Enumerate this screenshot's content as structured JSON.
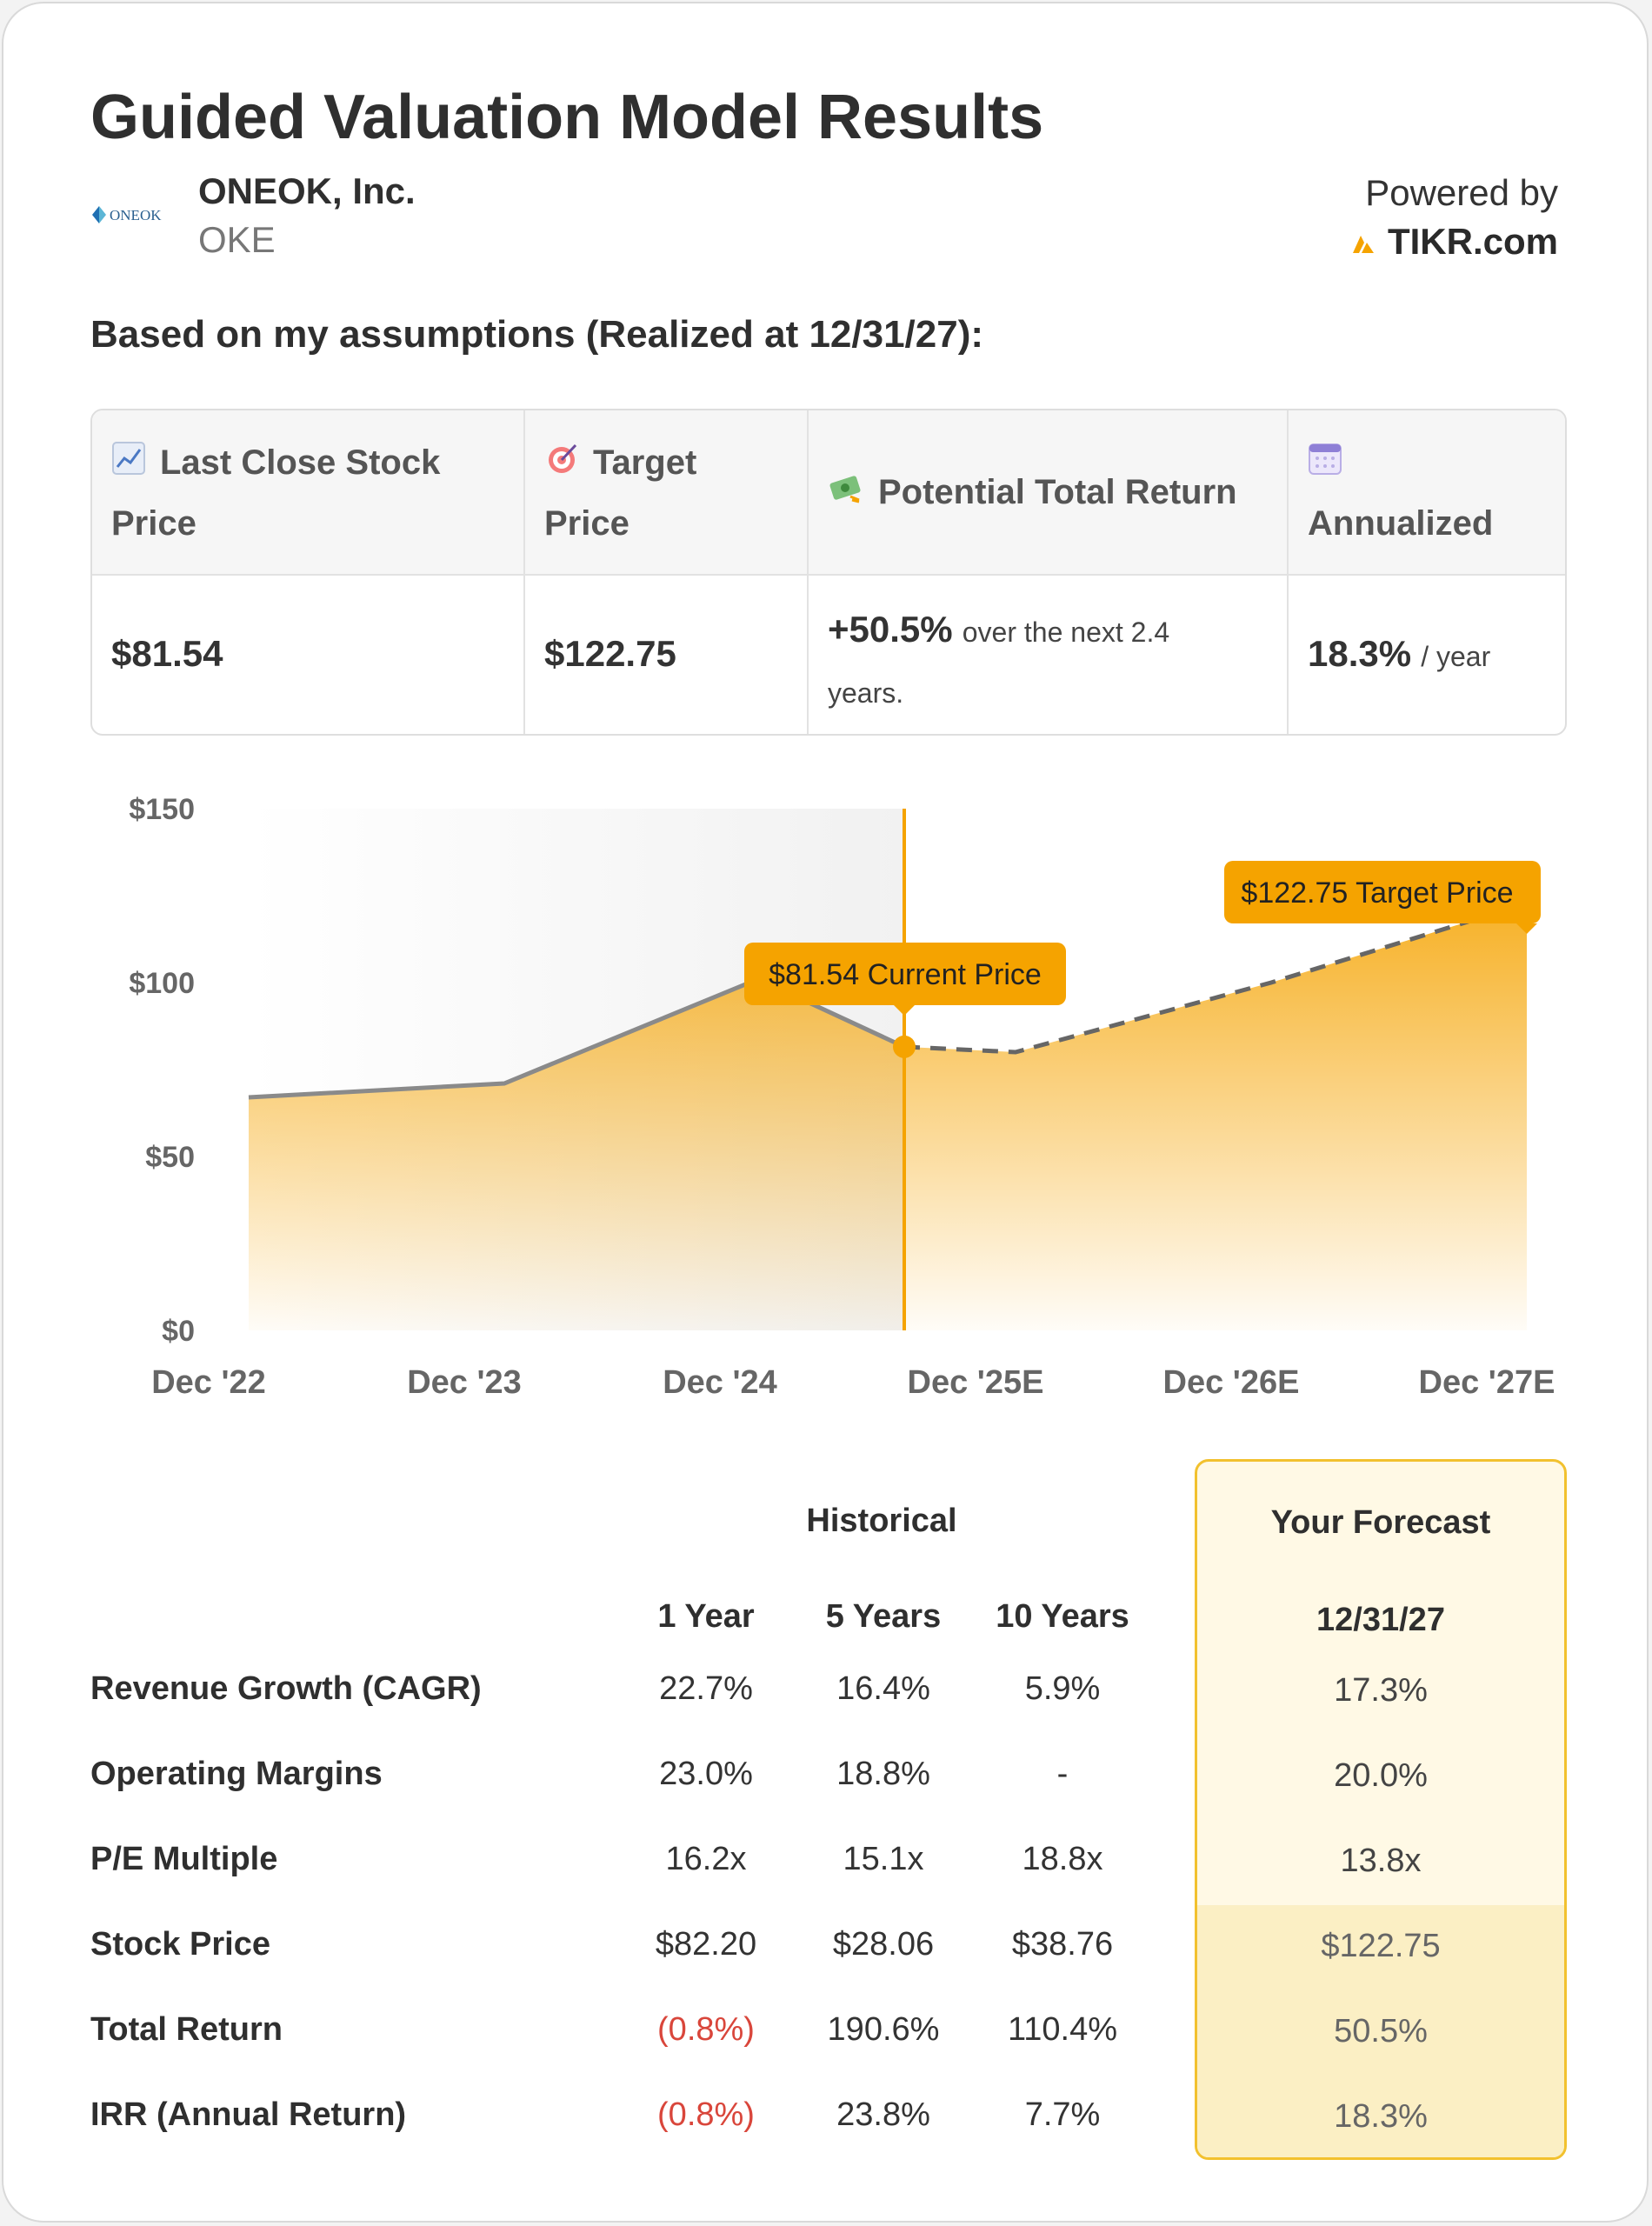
{
  "title": "Guided Valuation Model Results",
  "company": {
    "logo_text": "ONEOK",
    "name": "ONEOK, Inc.",
    "ticker": "OKE"
  },
  "powered_by": {
    "label": "Powered by",
    "brand": "TIKR.com"
  },
  "subtitle": "Based on my assumptions (Realized at 12/31/27):",
  "summary": {
    "headers": [
      {
        "icon": "chart-up-icon",
        "line1": "Last Close Stock",
        "line2": "Price"
      },
      {
        "icon": "target-icon",
        "line1": "Target",
        "line2": "Price"
      },
      {
        "icon": "money-icon",
        "line1": "Potential Total Return",
        "line2": ""
      },
      {
        "icon": "calendar-icon",
        "line1": "",
        "line2": "Annualized"
      }
    ],
    "last_close": "$81.54",
    "target": "$122.75",
    "total_return_value": "+50.5%",
    "total_return_text_1": "over the next 2.4",
    "total_return_text_2": "years.",
    "annualized_value": "18.3%",
    "annualized_unit": "/ year"
  },
  "chart_data": {
    "type": "area",
    "x": [
      "Dec '22",
      "Dec '23",
      "Dec '24",
      "Current",
      "Dec '25E",
      "Dec '26E",
      "Dec '27E"
    ],
    "x_tick_labels": [
      "Dec '22",
      "Dec '23",
      "Dec '24",
      "Dec '25E",
      "Dec '26E",
      "Dec '27E"
    ],
    "y_ticks": [
      "$0",
      "$50",
      "$100",
      "$150"
    ],
    "ylim": [
      0,
      150
    ],
    "historical": [
      67,
      71,
      101,
      81.54
    ],
    "forecast": [
      81.54,
      80,
      100,
      122.75
    ],
    "annotations": {
      "current": "$81.54 Current Price",
      "target": "$122.75 Target Price"
    },
    "colors": {
      "accent": "#f5a300",
      "line": "#8a8a8a",
      "shade": "#f2f2f2"
    }
  },
  "metrics": {
    "historical_label": "Historical",
    "forecast_label": "Your Forecast",
    "columns": [
      "1 Year",
      "5 Years",
      "10 Years"
    ],
    "forecast_date": "12/31/27",
    "rows": [
      {
        "label": "Revenue Growth (CAGR)",
        "y1": "22.7%",
        "y5": "16.4%",
        "y10": "5.9%",
        "forecast": "17.3%"
      },
      {
        "label": "Operating Margins",
        "y1": "23.0%",
        "y5": "18.8%",
        "y10": "-",
        "forecast": "20.0%"
      },
      {
        "label": "P/E Multiple",
        "y1": "16.2x",
        "y5": "15.1x",
        "y10": "18.8x",
        "forecast": "13.8x"
      },
      {
        "label": "Stock Price",
        "y1": "$82.20",
        "y5": "$28.06",
        "y10": "$38.76",
        "forecast": "$122.75"
      },
      {
        "label": "Total Return",
        "y1": "(0.8%)",
        "y5": "190.6%",
        "y10": "110.4%",
        "forecast": "50.5%"
      },
      {
        "label": "IRR (Annual Return)",
        "y1": "(0.8%)",
        "y5": "23.8%",
        "y10": "7.7%",
        "forecast": "18.3%"
      }
    ]
  }
}
